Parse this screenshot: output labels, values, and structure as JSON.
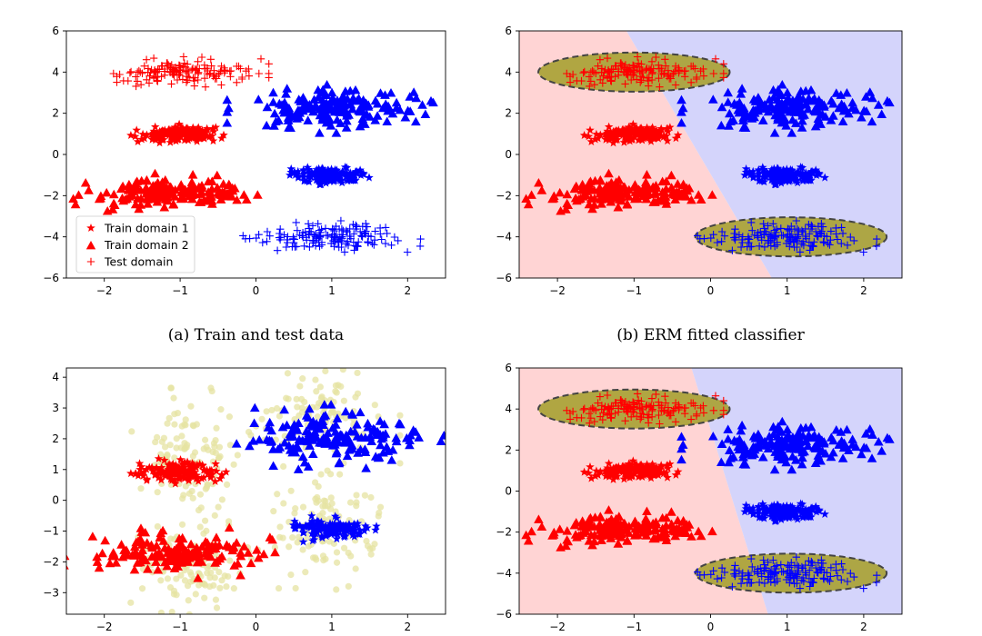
{
  "figure": {
    "panels": [
      {
        "id": "a",
        "caption": "(a) Train and test data",
        "show_background": false,
        "show_ellipses": false,
        "show_test": true,
        "show_faint": false,
        "ylim": [
          -6,
          6
        ],
        "yticks": [
          -6,
          -4,
          -2,
          0,
          2,
          4,
          6
        ],
        "legend": [
          "Train domain 1",
          "Train domain 2",
          "Test domain"
        ]
      },
      {
        "id": "b",
        "caption": "(b) ERM fitted classifier",
        "show_background": true,
        "boundary": [
          [
            -1.1,
            6
          ],
          [
            0.8,
            -6
          ]
        ],
        "show_ellipses": true,
        "show_test": true,
        "show_faint": false,
        "ylim": [
          -6,
          6
        ],
        "yticks": [
          -6,
          -4,
          -2,
          0,
          2,
          4,
          6
        ]
      },
      {
        "id": "c",
        "caption": "",
        "show_background": false,
        "show_ellipses": false,
        "show_test": false,
        "show_faint": true,
        "ylim": [
          -3.7,
          4.3
        ],
        "yticks": [
          -3,
          -2,
          -1,
          0,
          1,
          2,
          3,
          4
        ]
      },
      {
        "id": "d",
        "caption": "",
        "show_background": true,
        "boundary": [
          [
            -0.25,
            6
          ],
          [
            0.75,
            -6
          ]
        ],
        "show_ellipses": true,
        "show_test": true,
        "show_faint": false,
        "ylim": [
          -6,
          6
        ],
        "yticks": [
          -6,
          -4,
          -2,
          0,
          2,
          4,
          6
        ]
      }
    ]
  },
  "chart_data": [
    {
      "type": "scatter",
      "title": "(a) Train and test data",
      "xlim": [
        -2.5,
        2.5
      ],
      "ylim": [
        -6,
        6
      ],
      "xticks": [
        -2,
        -1,
        0,
        1,
        2
      ],
      "yticks": [
        -6,
        -4,
        -2,
        0,
        2,
        4,
        6
      ],
      "legend_position": "lower-left",
      "series": [
        {
          "name": "Train domain 1",
          "marker": "star",
          "clusters": [
            {
              "label": "red",
              "color": "#ff0000",
              "center": [
                -1.0,
                1.0
              ],
              "spread": [
                0.25,
                0.18
              ],
              "n": 150
            },
            {
              "label": "blue",
              "color": "#0000ff",
              "center": [
                1.0,
                -1.0
              ],
              "spread": [
                0.25,
                0.18
              ],
              "n": 150
            }
          ]
        },
        {
          "name": "Train domain 2",
          "marker": "triangle",
          "clusters": [
            {
              "label": "red",
              "color": "#ff0000",
              "center": [
                -1.1,
                -1.85
              ],
              "spread": [
                0.55,
                0.35
              ],
              "n": 170
            },
            {
              "label": "blue",
              "color": "#0000ff",
              "center": [
                1.05,
                2.2
              ],
              "spread": [
                0.55,
                0.45
              ],
              "n": 170
            }
          ]
        },
        {
          "name": "Test domain",
          "marker": "plus",
          "clusters": [
            {
              "label": "red",
              "color": "#ff0000",
              "center": [
                -1.0,
                4.0
              ],
              "spread": [
                0.45,
                0.3
              ],
              "n": 150
            },
            {
              "label": "blue",
              "color": "#0000ff",
              "center": [
                1.0,
                -4.0
              ],
              "spread": [
                0.45,
                0.3
              ],
              "n": 150
            }
          ]
        }
      ]
    },
    {
      "type": "scatter",
      "title": "(b) ERM fitted classifier",
      "xlim": [
        -2.5,
        2.5
      ],
      "ylim": [
        -6,
        6
      ],
      "xticks": [
        -2,
        -1,
        0,
        1,
        2
      ],
      "yticks": [
        -6,
        -4,
        -2,
        0,
        2,
        4,
        6
      ],
      "decision_regions": {
        "left": "#ffd4d4",
        "right": "#d4d4fb"
      },
      "highlighted_regions": [
        {
          "center": [
            -1.0,
            4.0
          ],
          "radii": [
            1.25,
            0.95
          ],
          "fill": "#a9a235"
        },
        {
          "center": [
            1.05,
            -4.0
          ],
          "radii": [
            1.25,
            0.95
          ],
          "fill": "#a9a235"
        }
      ]
    },
    {
      "type": "scatter",
      "title": "",
      "xlim": [
        -2.5,
        2.5
      ],
      "ylim": [
        -3.7,
        4.3
      ],
      "xticks": [
        -2,
        -1,
        0,
        1,
        2
      ],
      "yticks": [
        -3,
        -2,
        -1,
        0,
        1,
        2,
        3,
        4
      ],
      "faint_points": {
        "color": "#e6e3a2",
        "clusters": [
          {
            "center": [
              -0.85,
              1.4
            ],
            "spread": [
              0.35,
              0.9
            ],
            "n": 110
          },
          {
            "center": [
              -0.85,
              -2.2
            ],
            "spread": [
              0.35,
              0.8
            ],
            "n": 110
          },
          {
            "center": [
              0.9,
              2.7
            ],
            "spread": [
              0.4,
              0.8
            ],
            "n": 110
          },
          {
            "center": [
              0.9,
              -0.9
            ],
            "spread": [
              0.35,
              0.8
            ],
            "n": 110
          }
        ]
      }
    },
    {
      "type": "scatter",
      "title": "",
      "xlim": [
        -2.5,
        2.5
      ],
      "ylim": [
        -6,
        6
      ],
      "xticks": [
        -2,
        -1,
        0,
        1,
        2
      ],
      "yticks": [
        -6,
        -4,
        -2,
        0,
        2,
        4,
        6
      ],
      "decision_regions": {
        "left": "#ffd4d4",
        "right": "#d4d4fb"
      },
      "highlighted_regions": [
        {
          "center": [
            -1.0,
            4.0
          ],
          "radii": [
            1.25,
            0.95
          ],
          "fill": "#a9a235"
        },
        {
          "center": [
            1.05,
            -4.0
          ],
          "radii": [
            1.25,
            0.95
          ],
          "fill": "#a9a235"
        }
      ]
    }
  ]
}
